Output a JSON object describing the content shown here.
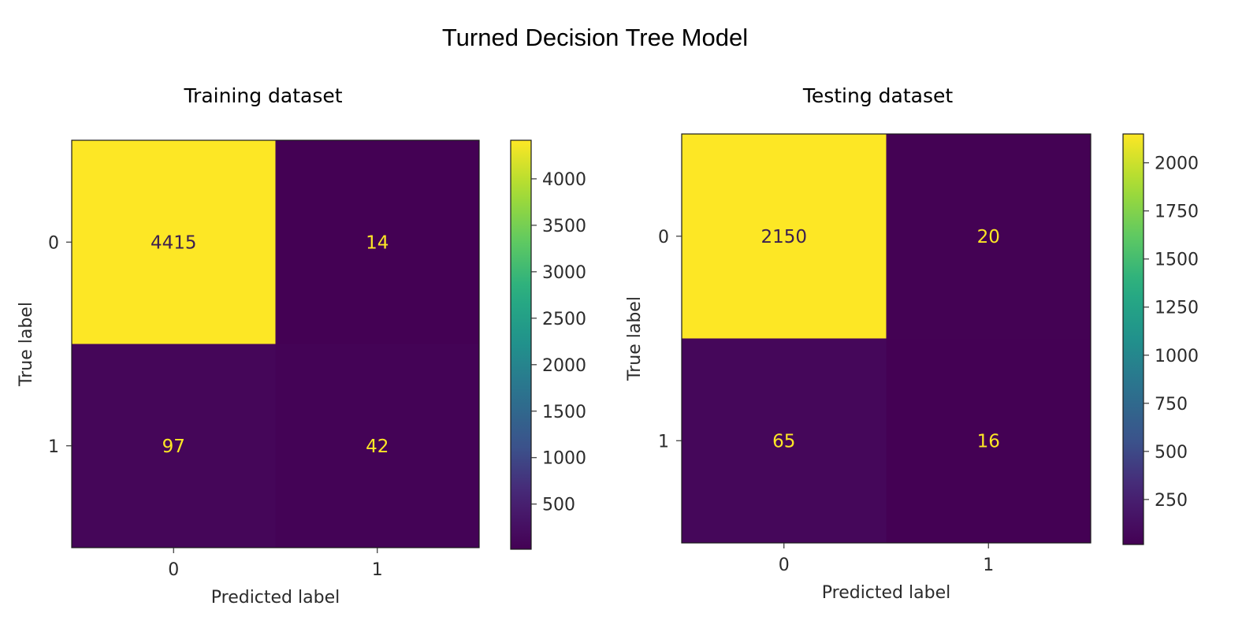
{
  "suptitle": "Turned Decision Tree Model",
  "chart_data": [
    {
      "type": "heatmap",
      "title": "Training dataset",
      "xlabel": "Predicted label",
      "ylabel": "True label",
      "x_categories": [
        "0",
        "1"
      ],
      "y_categories": [
        "0",
        "1"
      ],
      "values": [
        [
          4415,
          14
        ],
        [
          97,
          42
        ]
      ],
      "colormap": "viridis",
      "colorbar": {
        "min": 14,
        "max": 4415,
        "ticks": [
          500,
          1000,
          1500,
          2000,
          2500,
          3000,
          3500,
          4000
        ]
      },
      "grid": false
    },
    {
      "type": "heatmap",
      "title": "Testing dataset",
      "xlabel": "Predicted label",
      "ylabel": "True label",
      "x_categories": [
        "0",
        "1"
      ],
      "y_categories": [
        "0",
        "1"
      ],
      "values": [
        [
          2150,
          20
        ],
        [
          65,
          16
        ]
      ],
      "colormap": "viridis",
      "colorbar": {
        "min": 16,
        "max": 2150,
        "ticks": [
          250,
          500,
          750,
          1000,
          1250,
          1500,
          1750,
          2000
        ]
      },
      "grid": false
    }
  ],
  "colors": {
    "low": "#440154",
    "high": "#fde725",
    "text_on_dark": "#fde725",
    "text_on_light": "#3b1f50"
  }
}
